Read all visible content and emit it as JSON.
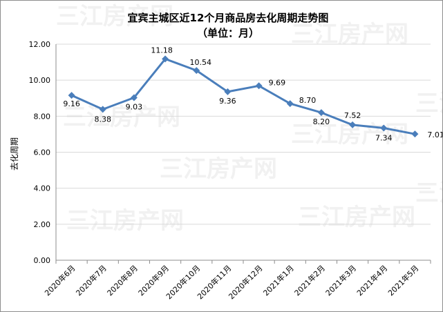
{
  "chart_data": {
    "type": "line",
    "title": "宜宾主城区近12个月商品房去化周期走势图",
    "subtitle": "（单位：月）",
    "ylabel": "去化周期",
    "xlabel": "",
    "categories": [
      "2020年6月",
      "2020年7月",
      "2020年8月",
      "2020年9月",
      "2020年10月",
      "2020年11月",
      "2020年12月",
      "2021年1月",
      "2021年2月",
      "2021年3月",
      "2021年4月",
      "2021年5月"
    ],
    "series": [
      {
        "values": [
          9.16,
          8.38,
          9.03,
          11.18,
          10.54,
          9.36,
          9.69,
          8.7,
          8.2,
          7.52,
          7.34,
          7.01
        ]
      }
    ],
    "data_labels": [
      "9.16",
      "8.38",
      "9.03",
      "11.18",
      "10.54",
      "9.36",
      "9.69",
      "8.70",
      "8.20",
      "7.52",
      "7.34",
      "7.01"
    ],
    "yticks": [
      "0.00",
      "2.00",
      "4.00",
      "6.00",
      "8.00",
      "10.00",
      "12.00"
    ],
    "ylim": [
      0,
      12
    ],
    "grid": true,
    "line_color": "#4a7ebb",
    "grid_color": "#d9d9d9",
    "watermark": "三江房产网"
  }
}
